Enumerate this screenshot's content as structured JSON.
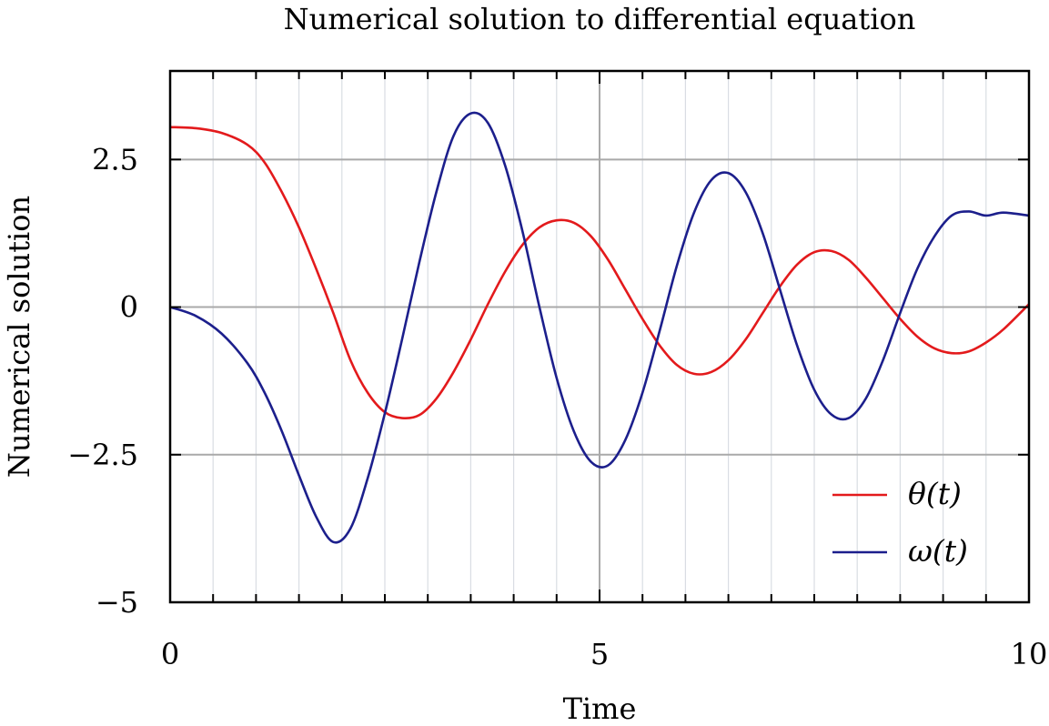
{
  "chart_data": {
    "type": "line",
    "title": "Numerical solution to differential equation",
    "xlabel": "Time",
    "ylabel": "Numerical solution",
    "xlim": [
      0,
      10
    ],
    "ylim": [
      -5,
      4
    ],
    "x_ticks": [
      0,
      5,
      10
    ],
    "x_tick_labels": [
      "0",
      "5",
      "10"
    ],
    "x_minor_step": 0.5,
    "y_ticks": [
      -5,
      -2.5,
      0,
      2.5
    ],
    "y_tick_labels": [
      "−5",
      "−2.5",
      "0",
      "2.5"
    ],
    "grid": true,
    "legend_position": "bottom-right",
    "series": [
      {
        "name": "θ(t)",
        "color": "#e31a1c",
        "x": [
          0,
          0.3,
          0.6,
          0.9,
          1.1,
          1.3,
          1.5,
          1.7,
          1.9,
          2.1,
          2.3,
          2.5,
          2.7,
          2.9,
          3.1,
          3.3,
          3.5,
          3.7,
          3.9,
          4.1,
          4.3,
          4.5,
          4.7,
          4.9,
          5.1,
          5.3,
          5.5,
          5.7,
          5.9,
          6.1,
          6.3,
          6.5,
          6.7,
          6.9,
          7.1,
          7.3,
          7.5,
          7.7,
          7.9,
          8.1,
          8.3,
          8.5,
          8.7,
          8.9,
          9.1,
          9.3,
          9.5,
          9.7,
          10.0
        ],
        "y": [
          3.05,
          3.03,
          2.95,
          2.75,
          2.45,
          1.95,
          1.35,
          0.65,
          -0.1,
          -0.9,
          -1.45,
          -1.78,
          -1.88,
          -1.83,
          -1.55,
          -1.1,
          -0.55,
          0.05,
          0.6,
          1.05,
          1.35,
          1.47,
          1.43,
          1.2,
          0.8,
          0.3,
          -0.2,
          -0.65,
          -0.98,
          -1.13,
          -1.1,
          -0.9,
          -0.55,
          -0.1,
          0.35,
          0.72,
          0.93,
          0.95,
          0.8,
          0.5,
          0.15,
          -0.2,
          -0.5,
          -0.7,
          -0.78,
          -0.75,
          -0.6,
          -0.38,
          0.05
        ]
      },
      {
        "name": "ω(t)",
        "color": "#1c1f8c",
        "x": [
          0,
          0.3,
          0.6,
          0.9,
          1.1,
          1.3,
          1.5,
          1.7,
          1.9,
          2.1,
          2.3,
          2.5,
          2.7,
          2.9,
          3.1,
          3.3,
          3.5,
          3.7,
          3.9,
          4.1,
          4.3,
          4.5,
          4.7,
          4.9,
          5.1,
          5.3,
          5.5,
          5.7,
          5.9,
          6.1,
          6.3,
          6.5,
          6.7,
          6.9,
          7.1,
          7.3,
          7.5,
          7.7,
          7.9,
          8.1,
          8.3,
          8.5,
          8.7,
          8.9,
          9.1,
          9.3,
          9.5,
          9.7,
          10.0
        ],
        "y": [
          0.0,
          -0.15,
          -0.45,
          -0.95,
          -1.45,
          -2.1,
          -2.85,
          -3.55,
          -3.98,
          -3.75,
          -2.9,
          -1.8,
          -0.55,
          0.75,
          1.95,
          2.9,
          3.28,
          3.12,
          2.4,
          1.3,
          0.0,
          -1.2,
          -2.1,
          -2.62,
          -2.68,
          -2.25,
          -1.45,
          -0.4,
          0.7,
          1.6,
          2.15,
          2.27,
          1.95,
          1.25,
          0.3,
          -0.65,
          -1.4,
          -1.82,
          -1.88,
          -1.55,
          -0.9,
          -0.1,
          0.65,
          1.2,
          1.55,
          1.62,
          1.55,
          1.6,
          1.55
        ]
      }
    ]
  }
}
